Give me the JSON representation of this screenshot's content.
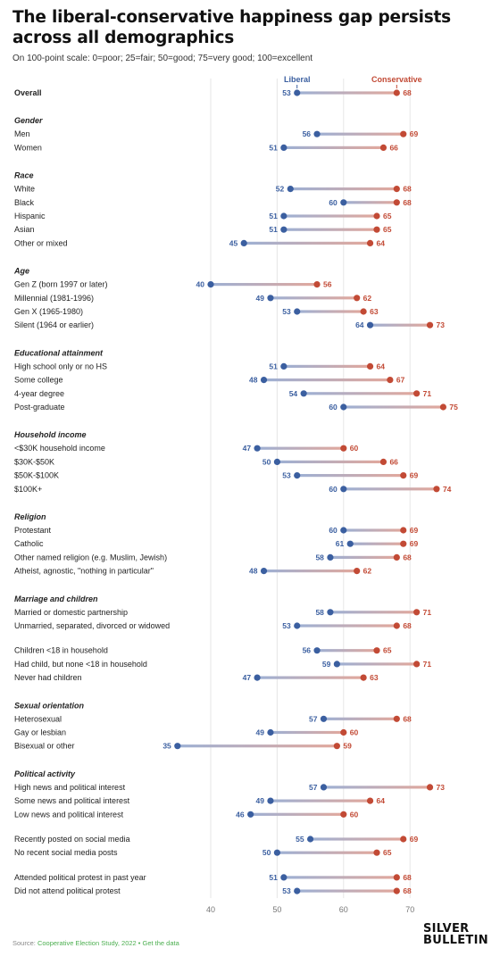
{
  "header": {
    "title": "The liberal-conservative happiness gap persists across all demographics",
    "subtitle": "On 100-point scale: 0=poor; 25=fair; 50=good; 75=very good; 100=excellent"
  },
  "footer": {
    "source_prefix": "Source: ",
    "source_name": "Cooperative Election Study, 2022",
    "separator": " • ",
    "data_link": "Get the data",
    "logo_line1": "SILVER",
    "logo_line2": "BULLETIN"
  },
  "colors": {
    "liberal": "#3b5fa0",
    "conservative": "#c24a35",
    "grid": "#e6e6e6"
  },
  "chart_data": {
    "type": "dumbbell",
    "title": "The liberal-conservative happiness gap persists across all demographics",
    "subtitle": "On 100-point scale: 0=poor; 25=fair; 50=good; 75=very good; 100=excellent",
    "series_names": [
      "Liberal",
      "Conservative"
    ],
    "x_ticks": [
      40,
      50,
      60,
      70
    ],
    "xlim": [
      33,
      77
    ],
    "legend_placement": "top, above Overall row",
    "rows": [
      {
        "kind": "row",
        "label": "Overall",
        "bold": true,
        "liberal": 53,
        "conservative": 68
      },
      {
        "kind": "header",
        "label": "Gender"
      },
      {
        "kind": "row",
        "label": "Men",
        "liberal": 56,
        "conservative": 69
      },
      {
        "kind": "row",
        "label": "Women",
        "liberal": 51,
        "conservative": 66
      },
      {
        "kind": "header",
        "label": "Race"
      },
      {
        "kind": "row",
        "label": "White",
        "liberal": 52,
        "conservative": 68
      },
      {
        "kind": "row",
        "label": "Black",
        "liberal": 60,
        "conservative": 68
      },
      {
        "kind": "row",
        "label": "Hispanic",
        "liberal": 51,
        "conservative": 65
      },
      {
        "kind": "row",
        "label": "Asian",
        "liberal": 51,
        "conservative": 65
      },
      {
        "kind": "row",
        "label": "Other or mixed",
        "liberal": 45,
        "conservative": 64
      },
      {
        "kind": "header",
        "label": "Age"
      },
      {
        "kind": "row",
        "label": "Gen Z (born 1997 or later)",
        "liberal": 40,
        "conservative": 56
      },
      {
        "kind": "row",
        "label": "Millennial (1981-1996)",
        "liberal": 49,
        "conservative": 62
      },
      {
        "kind": "row",
        "label": "Gen X (1965-1980)",
        "liberal": 53,
        "conservative": 63
      },
      {
        "kind": "row",
        "label": "Silent (1964 or earlier)",
        "liberal": 64,
        "conservative": 73
      },
      {
        "kind": "header",
        "label": "Educational attainment"
      },
      {
        "kind": "row",
        "label": "High school only or no HS",
        "liberal": 51,
        "conservative": 64
      },
      {
        "kind": "row",
        "label": "Some college",
        "liberal": 48,
        "conservative": 67
      },
      {
        "kind": "row",
        "label": "4-year degree",
        "liberal": 54,
        "conservative": 71
      },
      {
        "kind": "row",
        "label": "Post-graduate",
        "liberal": 60,
        "conservative": 75
      },
      {
        "kind": "header",
        "label": "Household income"
      },
      {
        "kind": "row",
        "label": "<$30K household income",
        "liberal": 47,
        "conservative": 60
      },
      {
        "kind": "row",
        "label": "$30K-$50K",
        "liberal": 50,
        "conservative": 66
      },
      {
        "kind": "row",
        "label": "$50K-$100K",
        "liberal": 53,
        "conservative": 69
      },
      {
        "kind": "row",
        "label": "$100K+",
        "liberal": 60,
        "conservative": 74
      },
      {
        "kind": "header",
        "label": "Religion"
      },
      {
        "kind": "row",
        "label": "Protestant",
        "liberal": 60,
        "conservative": 69
      },
      {
        "kind": "row",
        "label": "Catholic",
        "liberal": 61,
        "conservative": 69
      },
      {
        "kind": "row",
        "label": "Other named religion (e.g. Muslim, Jewish)",
        "liberal": 58,
        "conservative": 68
      },
      {
        "kind": "row",
        "label": "Atheist, agnostic, \"nothing in particular\"",
        "liberal": 48,
        "conservative": 62
      },
      {
        "kind": "header",
        "label": "Marriage and children"
      },
      {
        "kind": "row",
        "label": "Married or domestic partnership",
        "liberal": 58,
        "conservative": 71
      },
      {
        "kind": "row",
        "label": "Unmarried, separated, divorced or widowed",
        "liberal": 53,
        "conservative": 68
      },
      {
        "kind": "spacer"
      },
      {
        "kind": "row",
        "label": "Children <18 in household",
        "liberal": 56,
        "conservative": 65
      },
      {
        "kind": "row",
        "label": "Had child, but none <18 in household",
        "liberal": 59,
        "conservative": 71
      },
      {
        "kind": "row",
        "label": "Never had children",
        "liberal": 47,
        "conservative": 63
      },
      {
        "kind": "header",
        "label": "Sexual orientation"
      },
      {
        "kind": "row",
        "label": "Heterosexual",
        "liberal": 57,
        "conservative": 68
      },
      {
        "kind": "row",
        "label": "Gay or lesbian",
        "liberal": 49,
        "conservative": 60
      },
      {
        "kind": "row",
        "label": "Bisexual or other",
        "liberal": 35,
        "conservative": 59
      },
      {
        "kind": "header",
        "label": "Political activity"
      },
      {
        "kind": "row",
        "label": "High news and political interest",
        "liberal": 57,
        "conservative": 73
      },
      {
        "kind": "row",
        "label": "Some news and political interest",
        "liberal": 49,
        "conservative": 64
      },
      {
        "kind": "row",
        "label": "Low news and political interest",
        "liberal": 46,
        "conservative": 60
      },
      {
        "kind": "spacer"
      },
      {
        "kind": "row",
        "label": "Recently posted on social media",
        "liberal": 55,
        "conservative": 69
      },
      {
        "kind": "row",
        "label": "No recent social media posts",
        "liberal": 50,
        "conservative": 65
      },
      {
        "kind": "spacer"
      },
      {
        "kind": "row",
        "label": "Attended political protest in past year",
        "liberal": 51,
        "conservative": 68
      },
      {
        "kind": "row",
        "label": "Did not attend political protest",
        "liberal": 53,
        "conservative": 68
      }
    ]
  }
}
